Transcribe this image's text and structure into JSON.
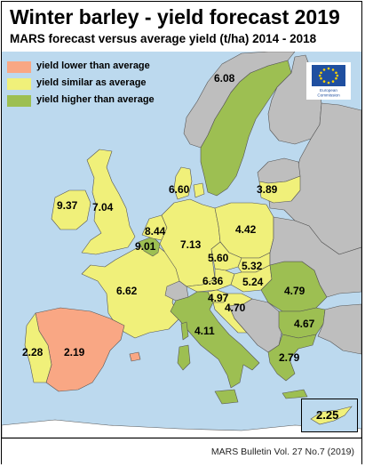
{
  "title": "Winter barley - yield forecast 2019",
  "subtitle": "MARS forecast versus average yield (t/ha) 2014 - 2018",
  "source": "MARS Bulletin Vol. 27 No.7 (2019)",
  "logo": {
    "text_line1": "European",
    "text_line2": "Commission"
  },
  "colors": {
    "sea": "#bcd9ee",
    "lower": "#f9a784",
    "similar": "#f0f07a",
    "higher": "#9dbf52",
    "nodata": "#bebebe",
    "border": "#555555"
  },
  "legend": [
    {
      "label": "yield lower than average",
      "category": "lower"
    },
    {
      "label": "yield similar as average",
      "category": "similar"
    },
    {
      "label": "yield higher than average",
      "category": "higher"
    }
  ],
  "regions": [
    {
      "name": "Sweden",
      "value": "6.08",
      "category": "higher"
    },
    {
      "name": "Denmark",
      "value": "6.60",
      "category": "similar"
    },
    {
      "name": "Lithuania",
      "value": "3.89",
      "category": "similar"
    },
    {
      "name": "Ireland",
      "value": "9.37",
      "category": "similar"
    },
    {
      "name": "United Kingdom",
      "value": "7.04",
      "category": "similar"
    },
    {
      "name": "Netherlands",
      "value": "8.44",
      "category": "similar"
    },
    {
      "name": "Belgium",
      "value": "9.01",
      "category": "higher"
    },
    {
      "name": "Germany",
      "value": "7.13",
      "category": "similar"
    },
    {
      "name": "Poland",
      "value": "4.42",
      "category": "similar"
    },
    {
      "name": "Czechia",
      "value": "5.60",
      "category": "similar"
    },
    {
      "name": "Slovakia",
      "value": "5.32",
      "category": "similar"
    },
    {
      "name": "Hungary",
      "value": "5.24",
      "category": "similar"
    },
    {
      "name": "Austria",
      "value": "6.36",
      "category": "similar"
    },
    {
      "name": "Slovenia",
      "value": "4.97",
      "category": "similar"
    },
    {
      "name": "Croatia",
      "value": "4.70",
      "category": "similar"
    },
    {
      "name": "France",
      "value": "6.62",
      "category": "similar"
    },
    {
      "name": "Romania",
      "value": "4.79",
      "category": "higher"
    },
    {
      "name": "Bulgaria",
      "value": "4.67",
      "category": "higher"
    },
    {
      "name": "Italy",
      "value": "4.11",
      "category": "higher"
    },
    {
      "name": "Greece",
      "value": "2.79",
      "category": "higher"
    },
    {
      "name": "Portugal",
      "value": "2.28",
      "category": "similar"
    },
    {
      "name": "Spain",
      "value": "2.19",
      "category": "lower"
    },
    {
      "name": "Cyprus",
      "value": "2.25",
      "category": "similar"
    }
  ]
}
